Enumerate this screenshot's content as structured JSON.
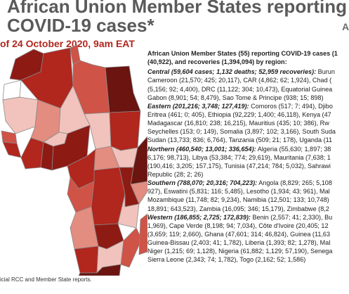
{
  "header": {
    "title_line1": "African Union Member States reporting",
    "title_line2": "COVID-19 cases*",
    "corner_mark": "A",
    "date": "of 24 October 2020, 9am EAT"
  },
  "map": {
    "country_fill_colors": [
      "#6b1410",
      "#8e1a14",
      "#b1261d",
      "#cf5346",
      "#e38c80",
      "#f1c3bc",
      "#ffffff"
    ],
    "border_color": "#8a8a8a"
  },
  "source_note": "icial RCC and Member State reports.",
  "summary": {
    "intro_lines": [
      "African Union Member States (55) reporting COVID-19 cases (1",
      "(40,922), and recoveries (1,394,094) by region:"
    ],
    "regions": [
      {
        "heading": "Central (59,604 cases; 1,132 deaths; 52,959 recoveries):",
        "lines": [
          " Burun",
          "Cameroon (21,570; 425; 20,117), CAR (4,862; 62; 1,924), Chad (",
          "(5,156; 92; 4,400), DRC (11,122; 304; 10,473), Equatorial Guinea",
          "Gabon (8,901; 54; 8,479), Sao Tome & Principe (938; 15; 898)"
        ]
      },
      {
        "heading": "Eastern (201,216; 3,748; 127,419):",
        "lines": [
          " Comoros (517; 7; 494), Djibo",
          "Eritrea (461; 0; 405), Ethiopia (92,229; 1,400; 46,118), Kenya (47",
          "Madagascar (16,810; 238; 16,215), Mauritius (435; 10; 386), Rw",
          "Seychelles (153; 0; 149), Somalia (3,897; 102; 3,166), South Suda",
          "Sudan (13,733; 836; 6,764), Tanzania (509; 21; 178), Uganda (11"
        ]
      },
      {
        "heading": "Northern (460,540; 13,001; 336,654):",
        "lines": [
          " Algeria (55,630; 1,897; 38",
          "6,176; 98,713), Libya (53,384; 774; 29,619), Mauritania (7,638; 1",
          "(190,416; 3,205; 157,175), Tunisia (47,214; 784; 5,032), Sahrawi",
          "Republic (28; 2; 26)"
        ]
      },
      {
        "heading": "Southern (788,070; 20,316; 704,223):",
        "lines": [
          " Angola (8,829; 265; 5,108",
          "927), Eswatini (5,831; 116; 5,485), Lesotho (1,934; 43; 961), Mal",
          "Mozambique (11,748; 82; 9,234), Namibia (12,501; 133; 10,748)",
          "18,891; 643,523), Zambia (16,095; 346; 15,179), Zimbabwe (8,2"
        ]
      },
      {
        "heading": "Western (186,855; 2,725; 172,839):",
        "lines": [
          " Benin (2,557; 41; 2,330), Bu",
          "1,969), Cape Verde (8,198; 94; 7,034), Côte d'Ivoire (20,405; 12",
          "(3,659; 119; 2,660), Ghana (47,601; 314; 46,824), Guinea (11,63",
          "Guinea-Bissau (2,403; 41; 1,782), Liberia (1,393; 82; 1,278), Mal",
          "Niger (1,215; 69; 1,128), Nigeria (61,882; 1,129; 57,190), Senega",
          "Sierra Leone (2,343; 74; 1,782), Togo (2,162; 52; 1,586)"
        ]
      }
    ]
  }
}
